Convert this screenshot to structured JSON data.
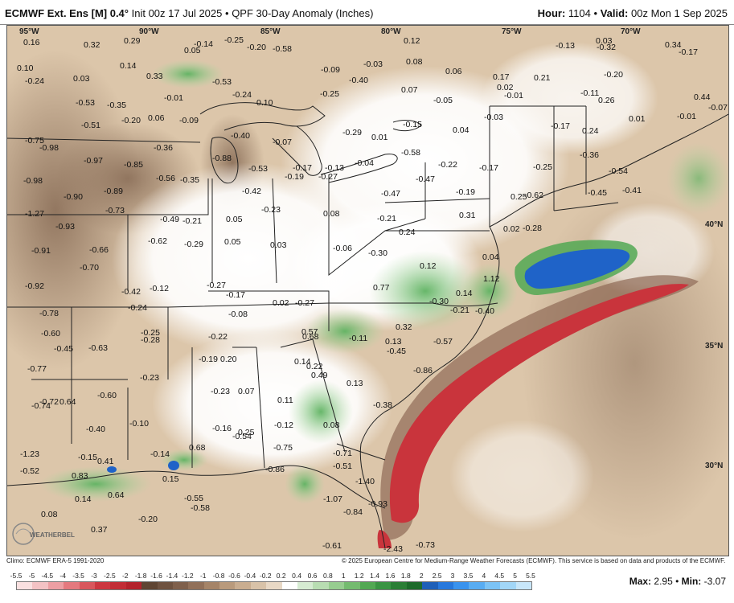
{
  "header": {
    "model": "ECMWF Ext. Ens [M] 0.4°",
    "init": "Init 00z 17 Jul 2025",
    "product": "QPF 30-Day Anomaly (Inches)",
    "hour_label": "Hour:",
    "hour": "1104",
    "valid_label": "Valid:",
    "valid": "00z Mon 1 Sep 2025"
  },
  "map": {
    "lon_labels": [
      "95°W",
      "90°W",
      "85°W",
      "80°W",
      "75°W",
      "70°W"
    ],
    "lat_labels": [
      "40°N",
      "35°N",
      "30°N"
    ],
    "values": [
      "0.16",
      "0.32",
      "0.29",
      "0.05",
      "-0.14",
      "-0.25",
      "-0.20",
      "-0.58",
      "0.12",
      "-0.13",
      "0.03",
      "-0.32",
      "0.34",
      "-0.17",
      "0.10",
      "-0.24",
      "0.14",
      "0.33",
      "-0.09",
      "-0.40",
      "-0.03",
      "0.08",
      "0.06",
      "0.17",
      "0.21",
      "0.02",
      "-0.01",
      "-0.20",
      "0.03",
      "-0.53",
      "-0.35",
      "-0.01",
      "-0.53",
      "-0.24",
      "0.10",
      "-0.25",
      "0.07",
      "-0.05",
      "-0.11",
      "0.26",
      "0.44",
      "-0.07",
      "-0.51",
      "-0.20",
      "0.06",
      "-0.09",
      "-0.40",
      "-0.07",
      "-0.29",
      "-0.15",
      "0.04",
      "-0.03",
      "-0.17",
      "0.24",
      "0.01",
      "-0.01",
      "-0.75",
      "-0.98",
      "-0.36",
      "0.01",
      "-0.58",
      "-0.97",
      "-0.85",
      "-0.56",
      "-0.35",
      "-0.88",
      "-0.53",
      "-0.17",
      "-0.13",
      "-0.04",
      "-0.22",
      "-0.17",
      "-0.25",
      "-0.36",
      "-0.54",
      "-0.98",
      "-0.89",
      "-0.42",
      "-0.19",
      "-0.27",
      "-0.47",
      "-0.47",
      "-0.19",
      "0.25",
      "-0.62",
      "-0.45",
      "-0.41",
      "-0.90",
      "-1.27",
      "-0.73",
      "-0.49",
      "-0.21",
      "0.05",
      "-0.23",
      "0.08",
      "-0.21",
      "0.31",
      "0.02",
      "-0.28",
      "-0.93",
      "-0.62",
      "-0.29",
      "0.05",
      "0.03",
      "-0.06",
      "-0.30",
      "0.24",
      "0.04",
      "-0.91",
      "-0.66",
      "-0.70",
      "0.12",
      "0.14",
      "1.12",
      "-0.92",
      "-0.42",
      "-0.12",
      "-0.27",
      "-0.17",
      "0.02",
      "-0.27",
      "0.77",
      "-0.30",
      "-0.21",
      "-0.40",
      "-0.78",
      "-0.24",
      "-0.08",
      "0.57",
      "0.68",
      "-0.11",
      "0.32",
      "-0.60",
      "-0.25",
      "-0.28",
      "-0.22",
      "0.13",
      "-0.45",
      "-0.57",
      "-0.45",
      "-0.63",
      "-0.19",
      "0.20",
      "0.14",
      "0.22",
      "-0.86",
      "-0.77",
      "-0.23",
      "0.49",
      "0.13",
      "-0.72",
      "0.64",
      "-0.60",
      "-0.23",
      "0.07",
      "0.11",
      "-0.38",
      "-0.74",
      "-0.10",
      "-0.40",
      "-0.12",
      "0.08",
      "-0.16",
      "0.25",
      "-0.54",
      "-0.75",
      "-0.71",
      "0.68",
      "-1.23",
      "-0.15",
      "0.41",
      "-0.14",
      "-0.86",
      "-0.51",
      "-0.52",
      "0.83",
      "0.15",
      "-1.40",
      "0.14",
      "0.64",
      "-0.55",
      "-1.07",
      "-0.93",
      "-0.58",
      "-0.84",
      "0.08",
      "-0.20",
      "0.37",
      "-0.61",
      "-2.43",
      "-0.73"
    ],
    "logo_text": "WEATHERBELL"
  },
  "footer": {
    "climo": "Climo: ECMWF ERA-5 1991-2020",
    "copyright": "© 2025 European Centre for Medium-Range Weather Forecasts (ECMWF). This service is based on data and products of the ECMWF."
  },
  "legend": {
    "ticks": [
      "-5.5",
      "-5",
      "-4.5",
      "-4",
      "-3.5",
      "-3",
      "-2.5",
      "-2",
      "-1.8",
      "-1.6",
      "-1.4",
      "-1.2",
      "-1",
      "-0.8",
      "-0.6",
      "-0.4",
      "-0.2",
      "0.2",
      "0.4",
      "0.6",
      "0.8",
      "1",
      "1.2",
      "1.4",
      "1.6",
      "1.8",
      "2",
      "2.5",
      "3",
      "3.5",
      "4",
      "4.5",
      "5",
      "5.5"
    ],
    "colors": [
      "#f9e0e0",
      "#f3c2c4",
      "#ec9fa3",
      "#e4797e",
      "#d9575d",
      "#cc3740",
      "#c22d36",
      "#b3232c",
      "#5f4533",
      "#6e5240",
      "#7f604c",
      "#917059",
      "#a58468",
      "#b99a7c",
      "#c9ad90",
      "#d8c2a8",
      "#e8d8c5",
      "#ffffff",
      "#d6ebd2",
      "#b8ddb2",
      "#97cd90",
      "#74bb6f",
      "#52a853",
      "#3a9443",
      "#2b7e36",
      "#1d6a2b",
      "#1e5fb8",
      "#2778dc",
      "#3a93ee",
      "#58acf2",
      "#7cc3f5",
      "#a2d6f7",
      "#c8e6f9"
    ],
    "max_label": "Max:",
    "max": "2.95",
    "min_label": "Min:",
    "min": "-3.07"
  }
}
